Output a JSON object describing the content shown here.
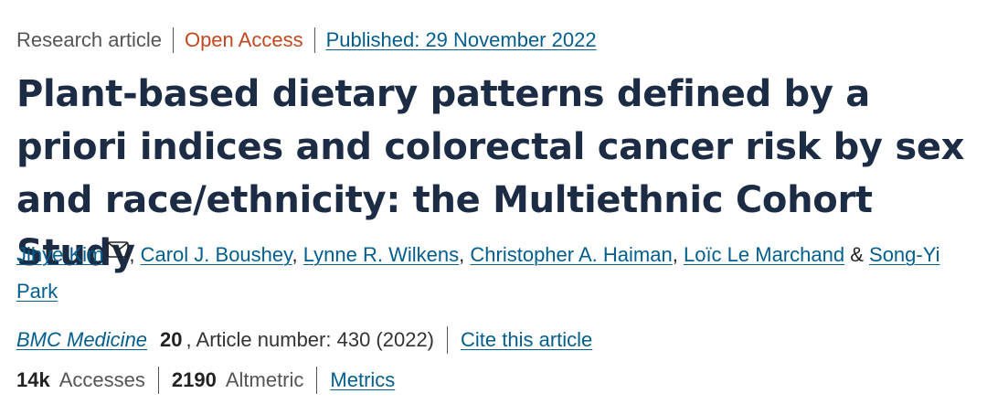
{
  "header": {
    "type": "Research article",
    "access": "Open Access",
    "published": "Published: 29 November 2022"
  },
  "title": "Plant-based dietary patterns defined by a priori indices and colorectal cancer risk by sex and race/ethnicity: the Multiethnic Cohort Study",
  "authors": [
    "Jihye Kim",
    "Carol J. Boushey",
    "Lynne R. Wilkens",
    "Christopher A. Haiman",
    "Loïc Le Marchand",
    "Song-Yi Park"
  ],
  "author_separators": {
    "comma": ",",
    "ampersand": "&"
  },
  "journal": {
    "name": "BMC Medicine",
    "volume": "20",
    "article_number": ", Article number: 430 (2022)",
    "cite_label": "Cite this article"
  },
  "metrics": {
    "accesses_count": "14k",
    "accesses_label": "Accesses",
    "altmetric_count": "2190",
    "altmetric_label": "Altmetric",
    "metrics_label": "Metrics"
  },
  "icons": {
    "corresponding_author": "mail-icon"
  }
}
